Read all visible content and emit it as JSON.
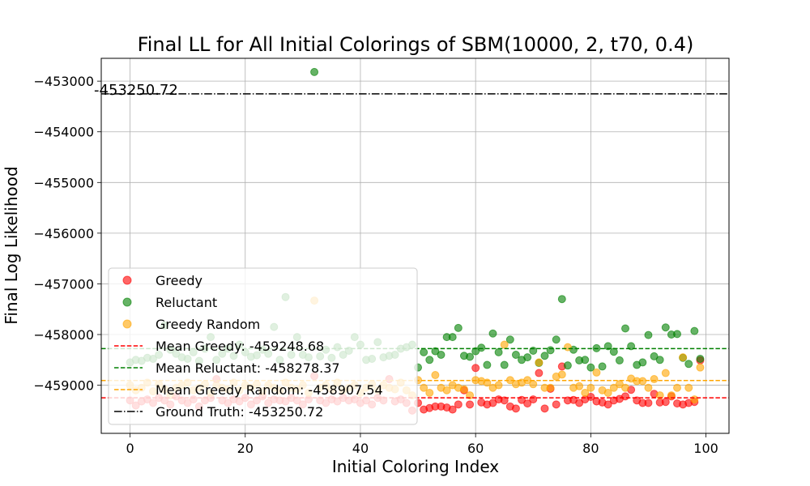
{
  "chart_data": {
    "type": "scatter",
    "title": "Final LL for All Initial Colorings of SBM(10000, 2, t70, 0.4)",
    "xlabel": "Initial Coloring Index",
    "ylabel": "Final Log Likelihood",
    "xlim": [
      -5,
      104
    ],
    "ylim": [
      -459950,
      -452550
    ],
    "xticks": [
      0,
      20,
      40,
      60,
      80,
      100
    ],
    "yticks": [
      -459000,
      -458000,
      -457000,
      -456000,
      -455000,
      -454000,
      -453000
    ],
    "xtick_labels": [
      "0",
      "20",
      "40",
      "60",
      "80",
      "100"
    ],
    "ytick_labels": [
      "−459000",
      "−458000",
      "−457000",
      "−456000",
      "−455000",
      "−454000",
      "−453000"
    ],
    "grid": true,
    "legend_position": "lower-left",
    "annotation": "-453250.72",
    "series": [
      {
        "name": "Greedy",
        "color": "#ff0000",
        "x": [
          0,
          1,
          2,
          3,
          4,
          5,
          6,
          7,
          8,
          9,
          10,
          11,
          12,
          13,
          14,
          15,
          16,
          17,
          18,
          19,
          20,
          21,
          22,
          23,
          24,
          25,
          26,
          27,
          28,
          29,
          30,
          31,
          32,
          33,
          34,
          35,
          36,
          37,
          38,
          39,
          40,
          41,
          42,
          43,
          44,
          45,
          46,
          47,
          48,
          49,
          50,
          51,
          52,
          53,
          54,
          55,
          56,
          57,
          58,
          59,
          60,
          61,
          62,
          63,
          64,
          65,
          66,
          67,
          68,
          69,
          70,
          71,
          72,
          73,
          74,
          75,
          76,
          77,
          78,
          79,
          80,
          81,
          82,
          83,
          84,
          85,
          86,
          87,
          88,
          89,
          90,
          91,
          92,
          93,
          94,
          95,
          96,
          97,
          98,
          99
        ],
        "values": [
          -459300,
          -459400,
          -459320,
          -459280,
          -459350,
          -459250,
          -459300,
          -459380,
          -459220,
          -459300,
          -459350,
          -459280,
          -459420,
          -459300,
          -459250,
          -458880,
          -459300,
          -459350,
          -459280,
          -459320,
          -459250,
          -459380,
          -459300,
          -459220,
          -459350,
          -459280,
          -459300,
          -459320,
          -459250,
          -459300,
          -459380,
          -459280,
          -458820,
          -459300,
          -459350,
          -459280,
          -459320,
          -459250,
          -459300,
          -459280,
          -459350,
          -459300,
          -459380,
          -459250,
          -459300,
          -458880,
          -459320,
          -459280,
          -459350,
          -459500,
          -459350,
          -459480,
          -459450,
          -459420,
          -459420,
          -459440,
          -459480,
          -459380,
          -459100,
          -459380,
          -458660,
          -459340,
          -459380,
          -459350,
          -459280,
          -459300,
          -459420,
          -459460,
          -459290,
          -459360,
          -459280,
          -458760,
          -459460,
          -459070,
          -459380,
          -458630,
          -459300,
          -459290,
          -459350,
          -459280,
          -459230,
          -459320,
          -459340,
          -459380,
          -459300,
          -459270,
          -459220,
          -459090,
          -459300,
          -459350,
          -459350,
          -459170,
          -459340,
          -459330,
          -459220,
          -459360,
          -459380,
          -459350,
          -459330,
          -458510
        ]
      },
      {
        "name": "Reluctant",
        "color": "#008000",
        "x": [
          0,
          1,
          2,
          3,
          4,
          5,
          6,
          7,
          8,
          9,
          10,
          11,
          12,
          13,
          14,
          15,
          16,
          17,
          18,
          19,
          20,
          21,
          22,
          23,
          24,
          25,
          26,
          27,
          28,
          29,
          30,
          31,
          32,
          33,
          34,
          35,
          36,
          37,
          38,
          39,
          40,
          41,
          42,
          43,
          44,
          45,
          46,
          47,
          48,
          49,
          50,
          51,
          52,
          53,
          54,
          55,
          56,
          57,
          58,
          59,
          60,
          61,
          62,
          63,
          64,
          65,
          66,
          67,
          68,
          69,
          70,
          71,
          72,
          73,
          74,
          75,
          76,
          77,
          78,
          79,
          80,
          81,
          82,
          83,
          84,
          85,
          86,
          87,
          88,
          89,
          90,
          91,
          92,
          93,
          94,
          95,
          96,
          97,
          98,
          99
        ],
        "values": [
          -458550,
          -458500,
          -458520,
          -458460,
          -458480,
          -458400,
          -457820,
          -458300,
          -458380,
          -458450,
          -458480,
          -458350,
          -458520,
          -458280,
          -458050,
          -458500,
          -458380,
          -458280,
          -458420,
          -458200,
          -458350,
          -458440,
          -458410,
          -458300,
          -458380,
          -457850,
          -458500,
          -457260,
          -458400,
          -458050,
          -458400,
          -458450,
          -452820,
          -458430,
          -458300,
          -458460,
          -458250,
          -458400,
          -458320,
          -458050,
          -458200,
          -458500,
          -458480,
          -458150,
          -458450,
          -458420,
          -458400,
          -458280,
          -458250,
          -458200,
          -458650,
          -458350,
          -458500,
          -458330,
          -458400,
          -458050,
          -458050,
          -457870,
          -458420,
          -458440,
          -458330,
          -458260,
          -458600,
          -457980,
          -458350,
          -458600,
          -458100,
          -458400,
          -458500,
          -458450,
          -458320,
          -458560,
          -458420,
          -458310,
          -458100,
          -457300,
          -458610,
          -458300,
          -458510,
          -458500,
          -458650,
          -458270,
          -458630,
          -458230,
          -458340,
          -458510,
          -457880,
          -458230,
          -458600,
          -458550,
          -458010,
          -458430,
          -458500,
          -457860,
          -458000,
          -457990,
          -458460,
          -458580,
          -457930,
          -458480
        ]
      },
      {
        "name": "Greedy Random",
        "color": "#ffa500",
        "x": [
          0,
          1,
          2,
          3,
          4,
          5,
          6,
          7,
          8,
          9,
          10,
          11,
          12,
          13,
          14,
          15,
          16,
          17,
          18,
          19,
          20,
          21,
          22,
          23,
          24,
          25,
          26,
          27,
          28,
          29,
          30,
          31,
          32,
          33,
          34,
          35,
          36,
          37,
          38,
          39,
          40,
          41,
          42,
          43,
          44,
          45,
          46,
          47,
          48,
          49,
          50,
          51,
          52,
          53,
          54,
          55,
          56,
          57,
          58,
          59,
          60,
          61,
          62,
          63,
          64,
          65,
          66,
          67,
          68,
          69,
          70,
          71,
          72,
          73,
          74,
          75,
          76,
          77,
          78,
          79,
          80,
          81,
          82,
          83,
          84,
          85,
          86,
          87,
          88,
          89,
          90,
          91,
          92,
          93,
          94,
          95,
          96,
          97,
          98,
          99
        ],
        "values": [
          -459000,
          -459100,
          -459050,
          -458950,
          -459120,
          -458980,
          -459080,
          -459200,
          -459050,
          -459000,
          -458950,
          -459100,
          -459050,
          -458980,
          -459150,
          -459000,
          -459050,
          -459080,
          -458950,
          -459100,
          -459000,
          -459050,
          -458980,
          -459120,
          -459000,
          -459050,
          -459100,
          -458950,
          -459050,
          -459080,
          -459000,
          -459150,
          -457330,
          -459050,
          -459000,
          -459080,
          -458950,
          -459100,
          -459050,
          -459000,
          -459150,
          -459050,
          -458980,
          -459100,
          -459000,
          -459050,
          -459080,
          -458950,
          -459100,
          -459200,
          -458900,
          -459050,
          -459150,
          -458800,
          -459050,
          -459100,
          -459000,
          -459050,
          -459080,
          -459200,
          -458900,
          -458920,
          -458950,
          -459050,
          -459000,
          -458200,
          -458900,
          -458980,
          -458950,
          -458900,
          -458980,
          -458550,
          -459050,
          -459050,
          -458830,
          -458790,
          -458250,
          -459050,
          -459020,
          -459150,
          -459050,
          -458750,
          -459100,
          -459150,
          -459050,
          -458980,
          -459050,
          -458870,
          -458920,
          -458920,
          -459050,
          -458880,
          -459200,
          -458760,
          -459200,
          -459050,
          -458450,
          -459050,
          -459280,
          -458650
        ]
      }
    ],
    "reference_lines": [
      {
        "name": "Mean Greedy: -459248.68",
        "value": -459248.68,
        "color": "#ff0000",
        "style": "dashed"
      },
      {
        "name": "Mean Reluctant: -458278.37",
        "value": -458278.37,
        "color": "#008000",
        "style": "dashed"
      },
      {
        "name": "Mean Greedy Random: -458907.54",
        "value": -458907.54,
        "color": "#ffa500",
        "style": "dashed"
      },
      {
        "name": "Ground Truth: -453250.72",
        "value": -453250.72,
        "color": "#000000",
        "style": "dashdot"
      }
    ]
  }
}
